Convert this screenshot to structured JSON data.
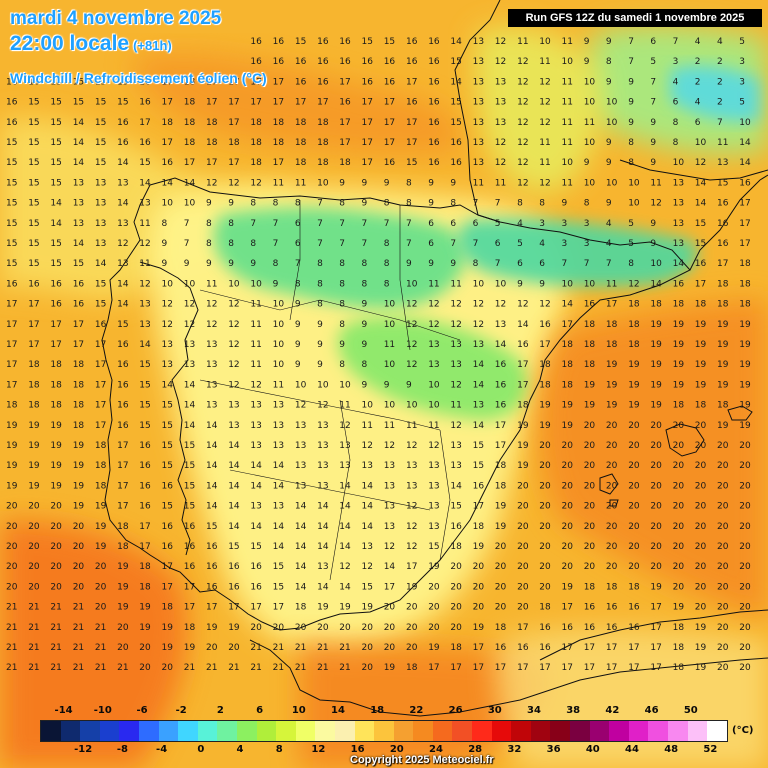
{
  "header": {
    "date": "mardi 4 novembre 2025",
    "time": "22:00 locale",
    "offset": "(+81h)",
    "parameter": "Windchill / Refroidissement éolien (°C)"
  },
  "run_banner": "Run GFS 12Z du samedi 1 novembre 2025",
  "copyright": "Copyright 2025 Meteociel.fr",
  "legend": {
    "unit": "(°C)",
    "top_ticks": [
      "-14",
      "-10",
      "-6",
      "-2",
      "2",
      "6",
      "10",
      "14",
      "18",
      "22",
      "26",
      "30",
      "34",
      "38",
      "42",
      "46",
      "50"
    ],
    "bottom_ticks": [
      "-12",
      "-8",
      "-4",
      "0",
      "4",
      "8",
      "12",
      "16",
      "20",
      "24",
      "28",
      "32",
      "36",
      "40",
      "44",
      "48",
      "52"
    ],
    "colors": [
      "#0a1535",
      "#0f2a6e",
      "#1540a8",
      "#1a3fcf",
      "#2929f0",
      "#2e6cff",
      "#3aa1ff",
      "#40d6ff",
      "#58f2d8",
      "#6ff2a0",
      "#8cf060",
      "#b0ee3a",
      "#d6f53a",
      "#f0ff66",
      "#fbfaa0",
      "#fbf0b0",
      "#ffe45a",
      "#fcc43c",
      "#f5a030",
      "#f58a20",
      "#f56a1e",
      "#f25025",
      "#ff2a1a",
      "#e60a0a",
      "#c00508",
      "#a00310",
      "#880018",
      "#7a0040",
      "#9a0070",
      "#c000a0",
      "#e020c8",
      "#f050e0",
      "#f888f0",
      "#fcc0f8",
      "#ffffff"
    ]
  },
  "map": {
    "background": "#f7b52f",
    "zones": [
      {
        "name": "cold-core-north-spain",
        "color": "#62e08a",
        "opacity": 0.9
      },
      {
        "name": "mild-interior",
        "color": "#fff48a",
        "opacity": 0.95
      },
      {
        "name": "warm-mediterranean",
        "color": "#f58a22",
        "opacity": 0.9
      }
    ],
    "grid_rows": [
      [
        "15",
        "15",
        "15",
        "15",
        "15",
        "15",
        "16",
        "16",
        "15",
        "15",
        "16",
        "16",
        "16",
        "15",
        "16",
        "16",
        "15",
        "15",
        "16",
        "16",
        "14",
        "13",
        "12",
        "11",
        "10",
        "11",
        "9",
        "9",
        "7",
        "6",
        "7",
        "4",
        "4",
        "5"
      ],
      [
        "15",
        "15",
        "15",
        "15",
        "15",
        "15",
        "15",
        "15",
        "16",
        "17",
        "16",
        "16",
        "16",
        "16",
        "16",
        "16",
        "16",
        "16",
        "16",
        "16",
        "15",
        "13",
        "12",
        "12",
        "11",
        "10",
        "9",
        "8",
        "7",
        "5",
        "3",
        "2",
        "2",
        "3"
      ],
      [
        "16",
        "16",
        "15",
        "15",
        "15",
        "15",
        "16",
        "17",
        "18",
        "17",
        "17",
        "17",
        "17",
        "16",
        "16",
        "17",
        "16",
        "16",
        "17",
        "16",
        "14",
        "13",
        "13",
        "12",
        "12",
        "11",
        "10",
        "9",
        "9",
        "7",
        "4",
        "2",
        "2",
        "3"
      ],
      [
        "16",
        "15",
        "15",
        "15",
        "15",
        "15",
        "16",
        "17",
        "18",
        "17",
        "17",
        "17",
        "17",
        "17",
        "17",
        "16",
        "17",
        "17",
        "16",
        "16",
        "15",
        "13",
        "13",
        "12",
        "12",
        "11",
        "10",
        "10",
        "9",
        "7",
        "6",
        "4",
        "2",
        "5"
      ],
      [
        "16",
        "15",
        "15",
        "14",
        "15",
        "16",
        "17",
        "18",
        "18",
        "18",
        "17",
        "18",
        "18",
        "18",
        "18",
        "17",
        "17",
        "17",
        "17",
        "16",
        "15",
        "13",
        "13",
        "12",
        "12",
        "11",
        "11",
        "10",
        "9",
        "9",
        "8",
        "6",
        "7",
        "10"
      ],
      [
        "15",
        "15",
        "15",
        "14",
        "15",
        "16",
        "16",
        "17",
        "18",
        "18",
        "18",
        "18",
        "18",
        "18",
        "18",
        "17",
        "17",
        "17",
        "17",
        "16",
        "16",
        "13",
        "12",
        "12",
        "11",
        "11",
        "10",
        "9",
        "8",
        "9",
        "8",
        "10",
        "11",
        "14"
      ],
      [
        "15",
        "15",
        "15",
        "14",
        "15",
        "14",
        "15",
        "16",
        "17",
        "17",
        "17",
        "18",
        "17",
        "18",
        "18",
        "18",
        "17",
        "16",
        "15",
        "16",
        "16",
        "13",
        "12",
        "12",
        "11",
        "10",
        "9",
        "9",
        "8",
        "9",
        "10",
        "12",
        "13",
        "14"
      ],
      [
        "15",
        "15",
        "15",
        "13",
        "13",
        "13",
        "14",
        "14",
        "14",
        "12",
        "12",
        "12",
        "11",
        "11",
        "10",
        "9",
        "9",
        "9",
        "8",
        "9",
        "9",
        "11",
        "11",
        "12",
        "12",
        "11",
        "10",
        "10",
        "10",
        "11",
        "13",
        "14",
        "15",
        "16"
      ],
      [
        "15",
        "15",
        "14",
        "13",
        "13",
        "14",
        "13",
        "10",
        "10",
        "9",
        "9",
        "8",
        "8",
        "8",
        "7",
        "8",
        "9",
        "8",
        "8",
        "9",
        "8",
        "7",
        "7",
        "8",
        "8",
        "9",
        "8",
        "9",
        "10",
        "12",
        "13",
        "14",
        "16",
        "17"
      ],
      [
        "15",
        "15",
        "14",
        "13",
        "13",
        "13",
        "11",
        "8",
        "7",
        "8",
        "8",
        "7",
        "7",
        "6",
        "7",
        "7",
        "7",
        "7",
        "7",
        "6",
        "6",
        "6",
        "5",
        "4",
        "3",
        "3",
        "3",
        "4",
        "5",
        "9",
        "13",
        "15",
        "16",
        "17"
      ],
      [
        "15",
        "15",
        "15",
        "14",
        "13",
        "12",
        "12",
        "9",
        "7",
        "8",
        "8",
        "8",
        "7",
        "6",
        "7",
        "7",
        "7",
        "8",
        "7",
        "6",
        "7",
        "7",
        "6",
        "5",
        "4",
        "3",
        "3",
        "4",
        "5",
        "9",
        "13",
        "15",
        "16",
        "17"
      ],
      [
        "15",
        "15",
        "15",
        "15",
        "14",
        "13",
        "11",
        "9",
        "9",
        "9",
        "9",
        "9",
        "8",
        "7",
        "8",
        "8",
        "8",
        "8",
        "9",
        "9",
        "9",
        "8",
        "7",
        "6",
        "6",
        "7",
        "7",
        "7",
        "8",
        "10",
        "14",
        "16",
        "17",
        "18"
      ],
      [
        "16",
        "16",
        "16",
        "16",
        "15",
        "14",
        "12",
        "10",
        "10",
        "11",
        "10",
        "10",
        "9",
        "8",
        "8",
        "8",
        "8",
        "8",
        "10",
        "11",
        "11",
        "10",
        "10",
        "9",
        "9",
        "10",
        "10",
        "11",
        "12",
        "14",
        "16",
        "17",
        "18",
        "18"
      ],
      [
        "17",
        "17",
        "16",
        "16",
        "15",
        "14",
        "13",
        "12",
        "12",
        "12",
        "12",
        "11",
        "10",
        "9",
        "8",
        "8",
        "9",
        "10",
        "12",
        "12",
        "12",
        "12",
        "12",
        "12",
        "12",
        "14",
        "16",
        "17",
        "18",
        "18",
        "18",
        "18",
        "18",
        "18"
      ],
      [
        "17",
        "17",
        "17",
        "17",
        "16",
        "15",
        "13",
        "12",
        "12",
        "12",
        "12",
        "11",
        "10",
        "9",
        "9",
        "8",
        "9",
        "10",
        "12",
        "12",
        "12",
        "12",
        "13",
        "14",
        "16",
        "17",
        "18",
        "18",
        "18",
        "19",
        "19",
        "19",
        "19",
        "19"
      ],
      [
        "17",
        "17",
        "17",
        "17",
        "17",
        "16",
        "14",
        "13",
        "13",
        "13",
        "12",
        "11",
        "10",
        "9",
        "9",
        "9",
        "9",
        "11",
        "12",
        "13",
        "13",
        "13",
        "14",
        "16",
        "17",
        "18",
        "18",
        "18",
        "18",
        "19",
        "19",
        "19",
        "19",
        "19"
      ],
      [
        "17",
        "18",
        "18",
        "18",
        "17",
        "16",
        "15",
        "13",
        "13",
        "13",
        "12",
        "11",
        "10",
        "9",
        "9",
        "8",
        "8",
        "10",
        "12",
        "13",
        "13",
        "14",
        "16",
        "17",
        "18",
        "18",
        "18",
        "19",
        "19",
        "19",
        "19",
        "19",
        "19",
        "19"
      ],
      [
        "17",
        "18",
        "18",
        "18",
        "17",
        "16",
        "15",
        "14",
        "14",
        "13",
        "12",
        "12",
        "11",
        "10",
        "10",
        "10",
        "9",
        "9",
        "9",
        "10",
        "12",
        "14",
        "16",
        "17",
        "18",
        "18",
        "19",
        "19",
        "19",
        "19",
        "19",
        "19",
        "19",
        "19"
      ],
      [
        "18",
        "18",
        "18",
        "18",
        "17",
        "16",
        "15",
        "15",
        "14",
        "13",
        "13",
        "13",
        "13",
        "12",
        "12",
        "11",
        "10",
        "10",
        "10",
        "10",
        "11",
        "13",
        "16",
        "18",
        "19",
        "19",
        "19",
        "19",
        "19",
        "19",
        "18",
        "18",
        "18",
        "19"
      ],
      [
        "19",
        "19",
        "19",
        "18",
        "17",
        "16",
        "15",
        "15",
        "14",
        "14",
        "13",
        "13",
        "13",
        "13",
        "13",
        "12",
        "11",
        "11",
        "11",
        "11",
        "12",
        "14",
        "17",
        "19",
        "19",
        "19",
        "20",
        "20",
        "20",
        "20",
        "20",
        "20",
        "19",
        "19"
      ],
      [
        "19",
        "19",
        "19",
        "19",
        "18",
        "17",
        "16",
        "15",
        "15",
        "14",
        "14",
        "13",
        "13",
        "13",
        "13",
        "13",
        "12",
        "12",
        "12",
        "12",
        "13",
        "15",
        "17",
        "19",
        "20",
        "20",
        "20",
        "20",
        "20",
        "20",
        "20",
        "20",
        "20",
        "20"
      ],
      [
        "19",
        "19",
        "19",
        "19",
        "18",
        "17",
        "16",
        "15",
        "15",
        "14",
        "14",
        "14",
        "14",
        "13",
        "13",
        "13",
        "13",
        "13",
        "13",
        "13",
        "13",
        "15",
        "18",
        "19",
        "20",
        "20",
        "20",
        "20",
        "20",
        "20",
        "20",
        "20",
        "20",
        "20"
      ],
      [
        "19",
        "19",
        "19",
        "19",
        "18",
        "17",
        "16",
        "16",
        "15",
        "14",
        "14",
        "14",
        "14",
        "13",
        "13",
        "14",
        "14",
        "13",
        "13",
        "13",
        "14",
        "16",
        "18",
        "20",
        "20",
        "20",
        "20",
        "20",
        "20",
        "20",
        "20",
        "20",
        "20",
        "20"
      ],
      [
        "20",
        "20",
        "20",
        "19",
        "19",
        "17",
        "16",
        "15",
        "15",
        "14",
        "14",
        "13",
        "13",
        "14",
        "14",
        "14",
        "14",
        "13",
        "12",
        "13",
        "15",
        "17",
        "19",
        "20",
        "20",
        "20",
        "20",
        "20",
        "20",
        "20",
        "20",
        "20",
        "20",
        "20"
      ],
      [
        "20",
        "20",
        "20",
        "20",
        "19",
        "18",
        "17",
        "16",
        "16",
        "15",
        "14",
        "14",
        "14",
        "14",
        "14",
        "14",
        "14",
        "13",
        "12",
        "13",
        "16",
        "18",
        "19",
        "20",
        "20",
        "20",
        "20",
        "20",
        "20",
        "20",
        "20",
        "20",
        "20",
        "20"
      ],
      [
        "20",
        "20",
        "20",
        "20",
        "19",
        "18",
        "17",
        "16",
        "16",
        "16",
        "15",
        "15",
        "14",
        "14",
        "14",
        "14",
        "13",
        "12",
        "12",
        "15",
        "18",
        "19",
        "20",
        "20",
        "20",
        "20",
        "20",
        "20",
        "20",
        "20",
        "20",
        "20",
        "20",
        "20"
      ],
      [
        "20",
        "20",
        "20",
        "20",
        "20",
        "19",
        "18",
        "17",
        "16",
        "16",
        "16",
        "16",
        "15",
        "14",
        "13",
        "12",
        "12",
        "14",
        "17",
        "19",
        "20",
        "20",
        "20",
        "20",
        "20",
        "20",
        "20",
        "20",
        "20",
        "20",
        "20",
        "20",
        "20",
        "20"
      ],
      [
        "20",
        "20",
        "20",
        "20",
        "20",
        "19",
        "18",
        "17",
        "17",
        "16",
        "16",
        "16",
        "15",
        "14",
        "14",
        "14",
        "15",
        "17",
        "19",
        "20",
        "20",
        "20",
        "20",
        "20",
        "20",
        "19",
        "18",
        "18",
        "18",
        "19",
        "20",
        "20",
        "20",
        "20"
      ],
      [
        "21",
        "21",
        "21",
        "21",
        "20",
        "19",
        "19",
        "18",
        "17",
        "17",
        "17",
        "17",
        "17",
        "18",
        "19",
        "19",
        "19",
        "20",
        "20",
        "20",
        "20",
        "20",
        "20",
        "20",
        "18",
        "17",
        "16",
        "16",
        "16",
        "17",
        "19",
        "20",
        "20",
        "20"
      ],
      [
        "21",
        "21",
        "21",
        "21",
        "21",
        "20",
        "19",
        "19",
        "18",
        "19",
        "19",
        "20",
        "20",
        "20",
        "20",
        "20",
        "20",
        "20",
        "20",
        "20",
        "20",
        "19",
        "18",
        "17",
        "16",
        "16",
        "16",
        "16",
        "16",
        "17",
        "18",
        "19",
        "20",
        "20"
      ],
      [
        "21",
        "21",
        "21",
        "21",
        "21",
        "20",
        "20",
        "19",
        "19",
        "20",
        "20",
        "21",
        "21",
        "21",
        "21",
        "21",
        "20",
        "20",
        "20",
        "19",
        "18",
        "17",
        "16",
        "16",
        "16",
        "17",
        "17",
        "17",
        "17",
        "17",
        "18",
        "19",
        "20",
        "20"
      ],
      [
        "21",
        "21",
        "21",
        "21",
        "21",
        "21",
        "20",
        "20",
        "21",
        "21",
        "21",
        "21",
        "21",
        "21",
        "21",
        "21",
        "20",
        "19",
        "18",
        "17",
        "17",
        "17",
        "17",
        "17",
        "17",
        "17",
        "17",
        "17",
        "17",
        "17",
        "18",
        "19",
        "20",
        "20"
      ]
    ]
  }
}
